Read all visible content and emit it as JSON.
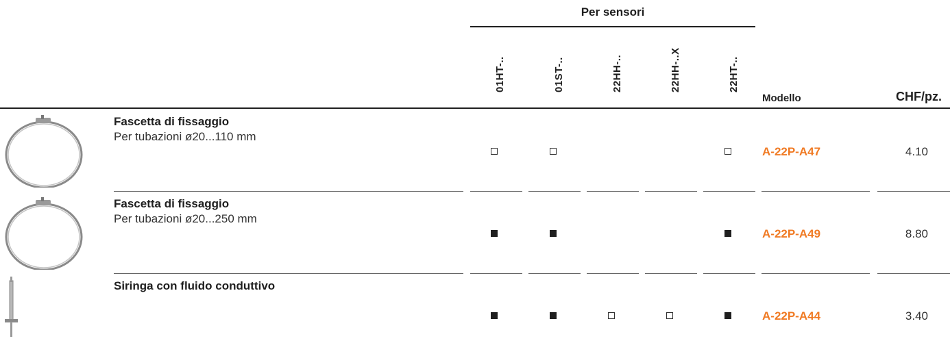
{
  "header": {
    "group_title": "Per sensori",
    "columns": [
      "01HT-..",
      "01ST-..",
      "22HH-..",
      "22HH-..X",
      "22HT-.."
    ],
    "model_label": "Modello",
    "price_label": "CHF/pz."
  },
  "rows": [
    {
      "name": "Fascetta di fissaggio",
      "desc": "Per tubazioni ø20...110 mm",
      "image": "clamp-ring-icon",
      "marks": [
        "open",
        "open",
        "",
        "",
        "open"
      ],
      "model": "A-22P-A47",
      "price": "4.10"
    },
    {
      "name": "Fascetta di fissaggio",
      "desc": "Per tubazioni ø20...250 mm",
      "image": "clamp-ring-icon",
      "marks": [
        "filled",
        "filled",
        "",
        "",
        "filled"
      ],
      "model": "A-22P-A49",
      "price": "8.80"
    },
    {
      "name": "Siringa con fluido conduttivo",
      "desc": "",
      "image": "syringe-icon",
      "marks": [
        "filled",
        "filled",
        "open",
        "open",
        "filled"
      ],
      "model": "A-22P-A44",
      "price": "3.40"
    }
  ],
  "colors": {
    "accent": "#f07a23",
    "text": "#1f1f1f"
  }
}
